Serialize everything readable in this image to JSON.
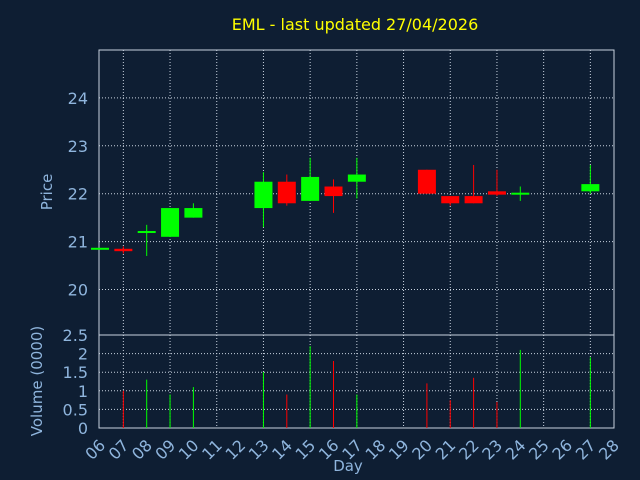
{
  "chart_data": {
    "type": "candlestick",
    "title": "EML - last updated 27/04/2026",
    "price_panel": {
      "ylabel": "Price",
      "ylim": [
        19.05,
        25.0
      ],
      "yticks": [
        20,
        21,
        22,
        23,
        24
      ]
    },
    "volume_panel": {
      "ylabel": "Volume (0000)",
      "ylim": [
        0,
        2.5
      ],
      "yticks": [
        "0",
        "0.5",
        "1",
        "1.5",
        "2",
        "2.5"
      ]
    },
    "xlabel": "Day",
    "x_ticks": [
      "06",
      "07",
      "08",
      "09",
      "10",
      "11",
      "12",
      "13",
      "14",
      "15",
      "16",
      "17",
      "18",
      "19",
      "20",
      "21",
      "22",
      "23",
      "24",
      "25",
      "26",
      "27",
      "28"
    ],
    "colors": {
      "up": "#00ff00",
      "down": "#ff0000"
    },
    "candles": [
      {
        "day": "06",
        "open": 20.85,
        "high": 20.85,
        "low": 20.85,
        "close": 20.85,
        "volume": 0
      },
      {
        "day": "07",
        "open": 20.85,
        "high": 20.9,
        "low": 20.75,
        "close": 20.8,
        "volume": 1.0
      },
      {
        "day": "08",
        "open": 21.2,
        "high": 21.35,
        "low": 20.7,
        "close": 21.2,
        "volume": 1.3
      },
      {
        "day": "09",
        "open": 21.1,
        "high": 21.7,
        "low": 21.1,
        "close": 21.7,
        "volume": 0.9
      },
      {
        "day": "10",
        "open": 21.5,
        "high": 21.8,
        "low": 21.5,
        "close": 21.7,
        "volume": 1.1
      },
      {
        "day": "13",
        "open": 21.7,
        "high": 22.45,
        "low": 21.3,
        "close": 22.25,
        "volume": 1.5
      },
      {
        "day": "14",
        "open": 22.25,
        "high": 22.4,
        "low": 21.75,
        "close": 21.8,
        "volume": 0.9
      },
      {
        "day": "15",
        "open": 21.85,
        "high": 22.75,
        "low": 21.85,
        "close": 22.35,
        "volume": 2.2
      },
      {
        "day": "16",
        "open": 22.15,
        "high": 22.3,
        "low": 21.6,
        "close": 21.95,
        "volume": 1.8
      },
      {
        "day": "17",
        "open": 22.25,
        "high": 22.75,
        "low": 21.9,
        "close": 22.4,
        "volume": 0.9
      },
      {
        "day": "20",
        "open": 22.5,
        "high": 22.5,
        "low": 22.0,
        "close": 22.0,
        "volume": 1.2
      },
      {
        "day": "21",
        "open": 21.95,
        "high": 21.95,
        "low": 21.75,
        "close": 21.8,
        "volume": 0.75
      },
      {
        "day": "22",
        "open": 21.95,
        "high": 22.6,
        "low": 21.8,
        "close": 21.8,
        "volume": 1.35
      },
      {
        "day": "23",
        "open": 22.05,
        "high": 22.5,
        "low": 21.95,
        "close": 21.98,
        "volume": 0.7
      },
      {
        "day": "24",
        "open": 22.0,
        "high": 22.15,
        "low": 21.85,
        "close": 22.0,
        "volume": 2.1
      },
      {
        "day": "27",
        "open": 22.05,
        "high": 22.6,
        "low": 22.0,
        "close": 22.2,
        "volume": 1.9
      }
    ]
  }
}
